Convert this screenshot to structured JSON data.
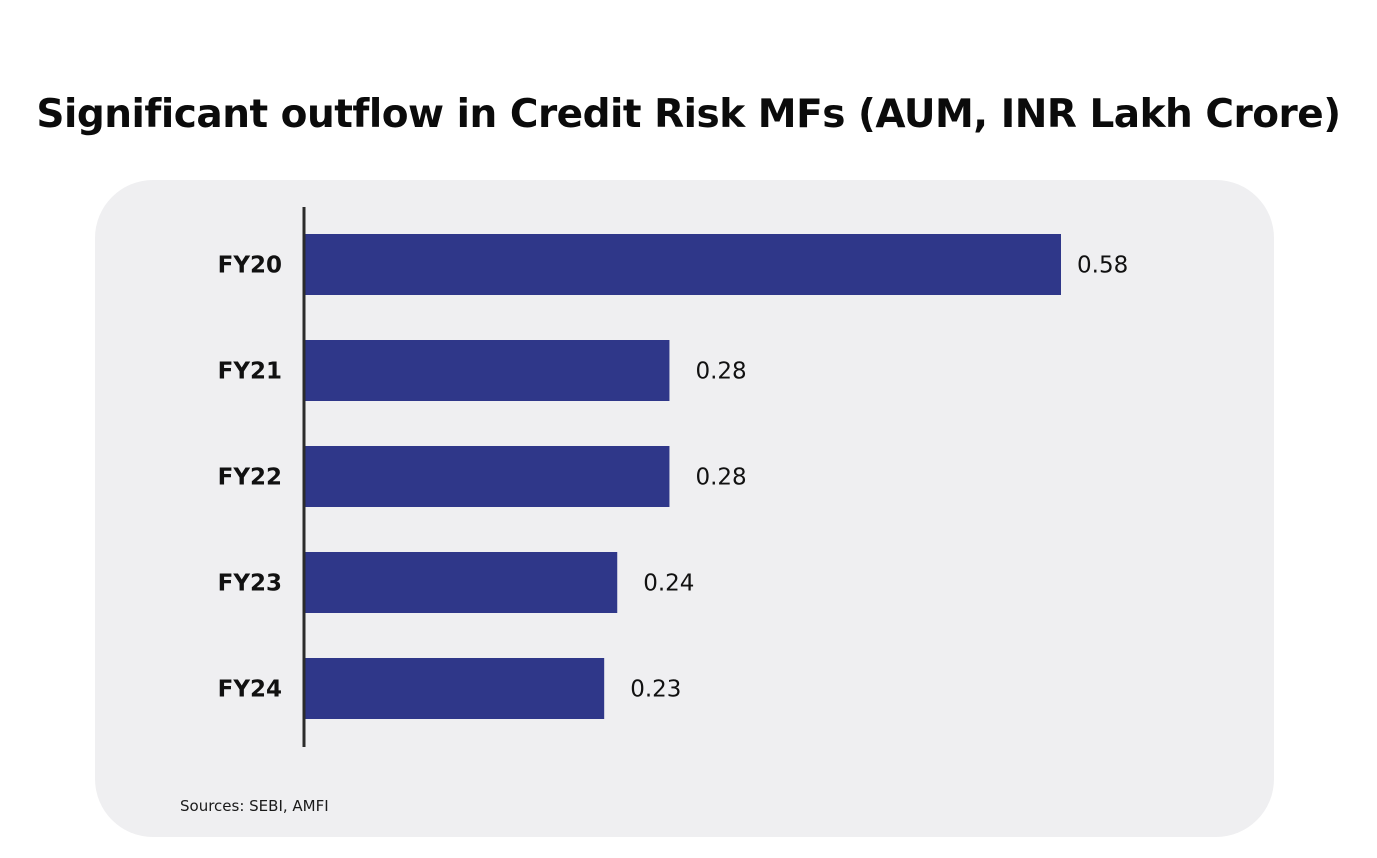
{
  "title": "Significant outflow in Credit Risk MFs (AUM, INR Lakh Crore)",
  "source": "Sources: SEBI, AMFI",
  "colors": {
    "bar": "#2f3789",
    "axis": "#2b2b2b",
    "card": "#efeff1"
  },
  "chart_data": {
    "type": "bar",
    "orientation": "horizontal",
    "categories": [
      "FY20",
      "FY21",
      "FY22",
      "FY23",
      "FY24"
    ],
    "values": [
      0.58,
      0.28,
      0.28,
      0.24,
      0.23
    ],
    "value_labels": [
      "0.58",
      "0.28",
      "0.28",
      "0.24",
      "0.23"
    ],
    "title": "Significant outflow in Credit Risk MFs (AUM, INR Lakh Crore)",
    "xlabel": "",
    "ylabel": "",
    "xlim": [
      0,
      0.58
    ],
    "grid": false,
    "legend": "none"
  }
}
